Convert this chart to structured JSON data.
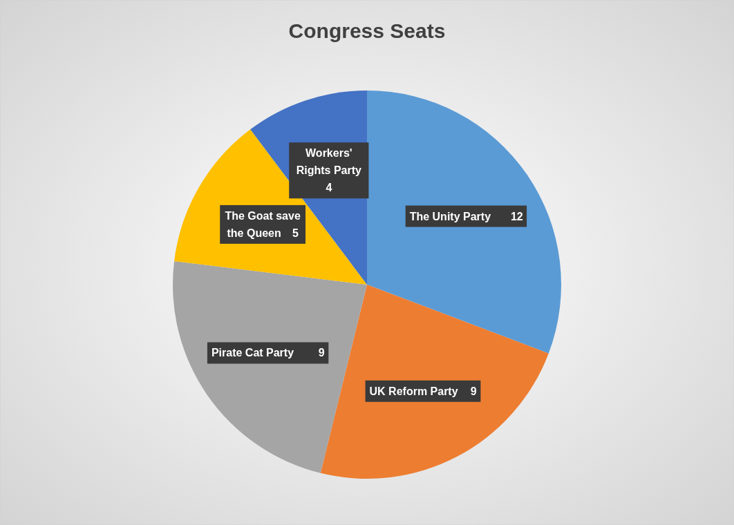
{
  "chart_data": {
    "type": "pie",
    "title": "Congress Seats",
    "categories": [
      "The Unity Party",
      "UK Reform Party",
      "Pirate Cat Party",
      "The Goat save the Queen",
      "Workers' Rights Party"
    ],
    "values": [
      12,
      9,
      9,
      5,
      4
    ],
    "colors": [
      "#5b9bd5",
      "#ed7d31",
      "#a5a5a5",
      "#ffc000",
      "#4472c4"
    ],
    "data_labels": true
  }
}
